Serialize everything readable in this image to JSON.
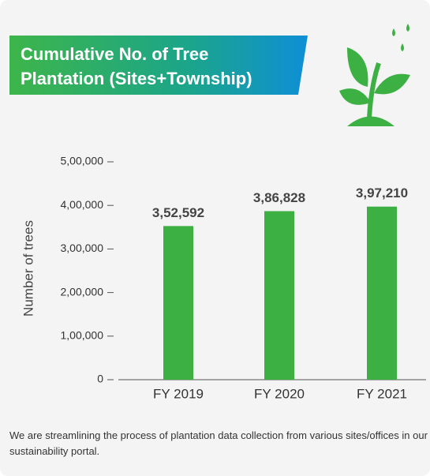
{
  "chart_data": {
    "type": "bar",
    "title": [
      "Cumulative No. of Tree",
      "Plantation (Sites+Township)"
    ],
    "y_label": "Number of trees",
    "categories": [
      "FY 2019",
      "FY 2020",
      "FY 2021"
    ],
    "values": [
      352592,
      386828,
      397210
    ],
    "value_labels": [
      "3,52,592",
      "3,86,828",
      "3,97,210"
    ],
    "color": "#3cb043",
    "ylim": [
      0,
      500000
    ],
    "yticks": [
      0,
      {
        "value": 100000,
        "label": "1,00,000"
      },
      {
        "value": 200000,
        "label": "2,00,000"
      },
      {
        "value": 300000,
        "label": "3,00,000"
      },
      {
        "value": 400000,
        "label": "4,00,000"
      },
      {
        "value": 500000,
        "label": "5,00,000"
      }
    ],
    "grid": false
  },
  "footer": "We are streamlining the process of plantation data collection from various sites/offices in our sustainability portal."
}
